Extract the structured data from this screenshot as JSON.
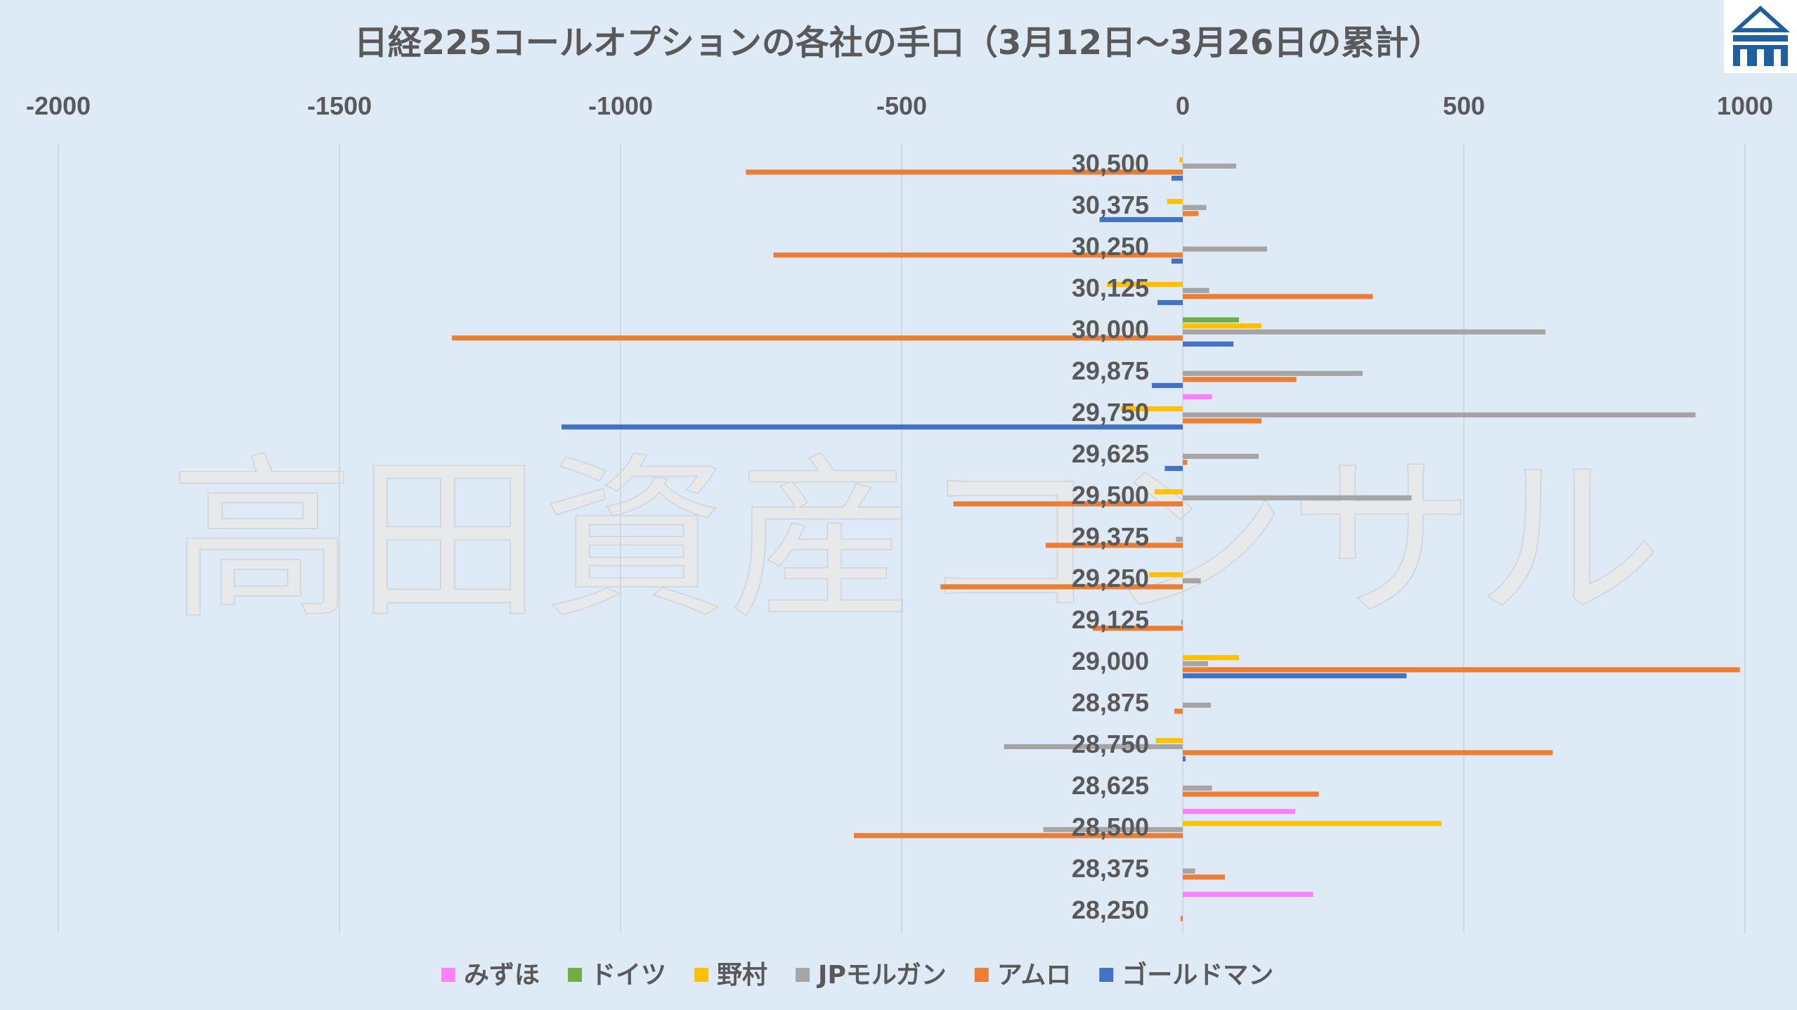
{
  "watermark": "高田資産コンサル",
  "colors": {
    "background": "#deeaf6",
    "grid": "#c9d3de",
    "text": "#595959",
    "logo": "#1f5f9e"
  },
  "chart_data": {
    "type": "bar",
    "orientation": "horizontal",
    "title": "日経225コールオプションの各社の手口（3月12日〜3月26日の累計）",
    "xlim": [
      -2000,
      1000
    ],
    "xticks": [
      -2000,
      -1500,
      -1000,
      -500,
      0,
      500,
      1000
    ],
    "xtick_labels": [
      "-2000",
      "-1500",
      "-1000",
      "-500",
      "0",
      "500",
      "1000"
    ],
    "grid": true,
    "legend_position": "bottom",
    "categories": [
      "30,500",
      "30,375",
      "30,250",
      "30,125",
      "30,000",
      "29,875",
      "29,750",
      "29,625",
      "29,500",
      "29,375",
      "29,250",
      "29,125",
      "29,000",
      "28,875",
      "28,750",
      "28,625",
      "28,500",
      "28,375",
      "28,250"
    ],
    "series": [
      {
        "name": "みずほ",
        "color": "#ff7fff",
        "values": [
          0,
          0,
          0,
          0,
          0,
          0,
          52,
          0,
          0,
          0,
          0,
          0,
          0,
          0,
          0,
          0,
          200,
          0,
          232
        ]
      },
      {
        "name": "ドイツ",
        "color": "#70ad47",
        "values": [
          0,
          0,
          0,
          0,
          100,
          0,
          0,
          0,
          0,
          0,
          0,
          0,
          0,
          0,
          0,
          0,
          0,
          0,
          0
        ]
      },
      {
        "name": "野村",
        "color": "#ffc000",
        "values": [
          -6,
          -28,
          0,
          -135,
          140,
          0,
          -110,
          0,
          -50,
          0,
          -60,
          0,
          100,
          0,
          -48,
          0,
          460,
          0,
          0
        ]
      },
      {
        "name": "JPモルガン",
        "color": "#a5a5a5",
        "values": [
          95,
          42,
          150,
          47,
          645,
          320,
          912,
          135,
          407,
          -12,
          32,
          -3,
          45,
          50,
          -318,
          52,
          -248,
          22,
          0
        ]
      },
      {
        "name": "アムロ",
        "color": "#ed7d31",
        "values": [
          -777,
          28,
          -728,
          338,
          -1300,
          202,
          140,
          8,
          -408,
          -244,
          -431,
          -160,
          991,
          -15,
          658,
          242,
          -585,
          75,
          -4
        ]
      },
      {
        "name": "ゴールドマン",
        "color": "#4472c4",
        "values": [
          -20,
          -148,
          -20,
          -45,
          90,
          -55,
          -1105,
          -32,
          0,
          0,
          0,
          0,
          398,
          0,
          5,
          0,
          0,
          0,
          0
        ]
      }
    ]
  }
}
